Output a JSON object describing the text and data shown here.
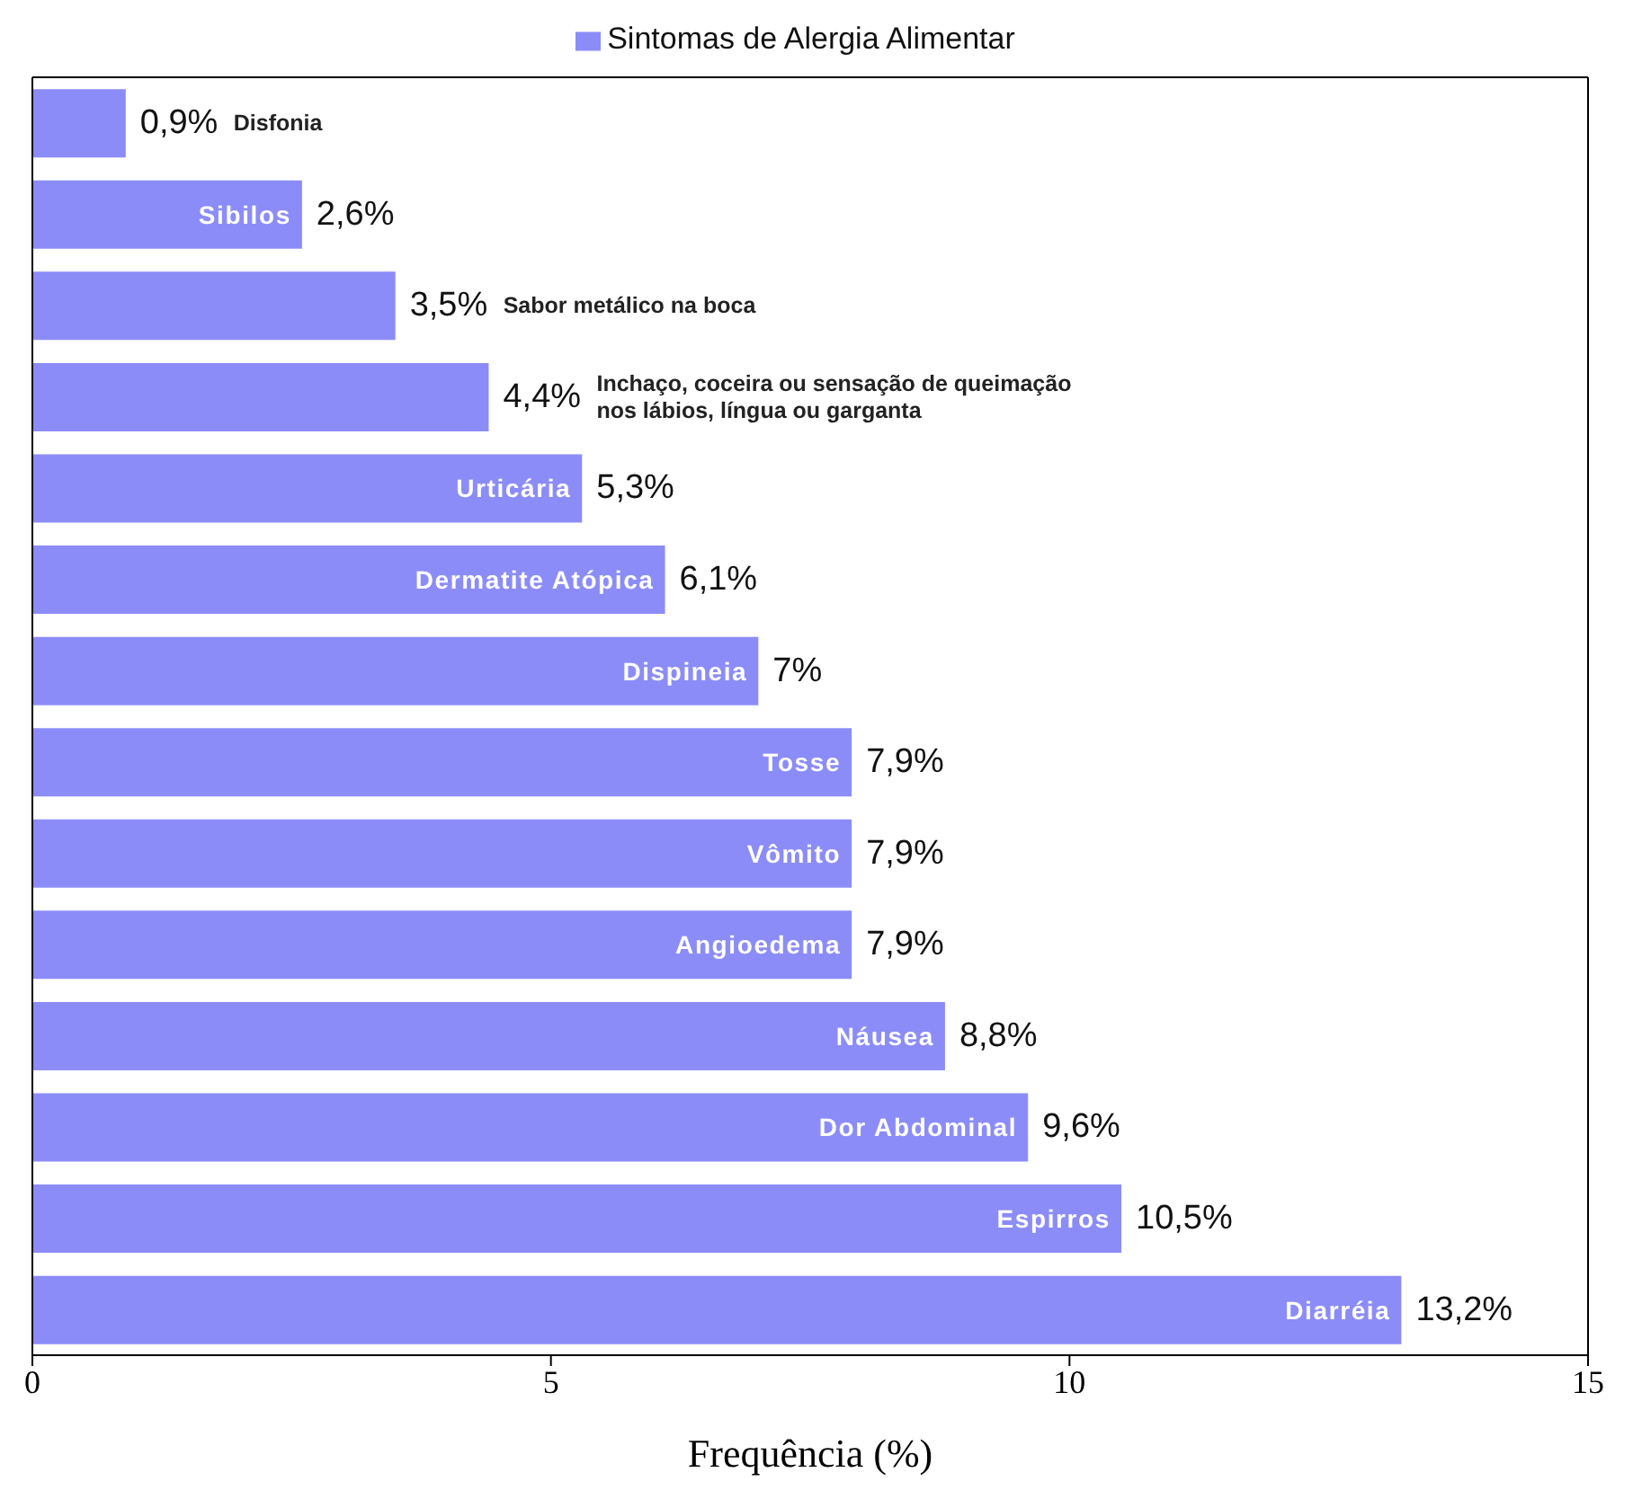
{
  "chart_data": {
    "type": "bar",
    "orientation": "horizontal",
    "xlabel": "Frequência (%)",
    "legend": "top",
    "categories": [
      "Disfonia",
      "Sibilos",
      "Sabor metálico na boca",
      "Inchaço, coceira ou sensação de queimação nos lábios, língua ou garganta",
      "Urticária",
      "Dermatite Atópica",
      "Dispineia",
      "Tosse",
      "Vômito",
      "Angioedema",
      "Náusea",
      "Dor Abdominal",
      "Espirros",
      "Diarréia"
    ],
    "series": [
      {
        "name": "Sintomas de Alergia Alimentar",
        "color": "#8c8cf8",
        "values": [
          0.9,
          2.6,
          3.5,
          4.4,
          5.3,
          6.1,
          7,
          7.9,
          7.9,
          7.9,
          8.8,
          9.6,
          10.5,
          13.2
        ],
        "value_labels": [
          "0,9%",
          "2,6%",
          "3,5%",
          "4,4%",
          "5,3%",
          "6,1%",
          "7%",
          "7,9%",
          "7,9%",
          "7,9%",
          "8,8%",
          "9,6%",
          "10,5%",
          "13,2%"
        ]
      }
    ],
    "xlim": [
      0,
      15
    ],
    "xticks": [
      0,
      5,
      10,
      15
    ]
  }
}
